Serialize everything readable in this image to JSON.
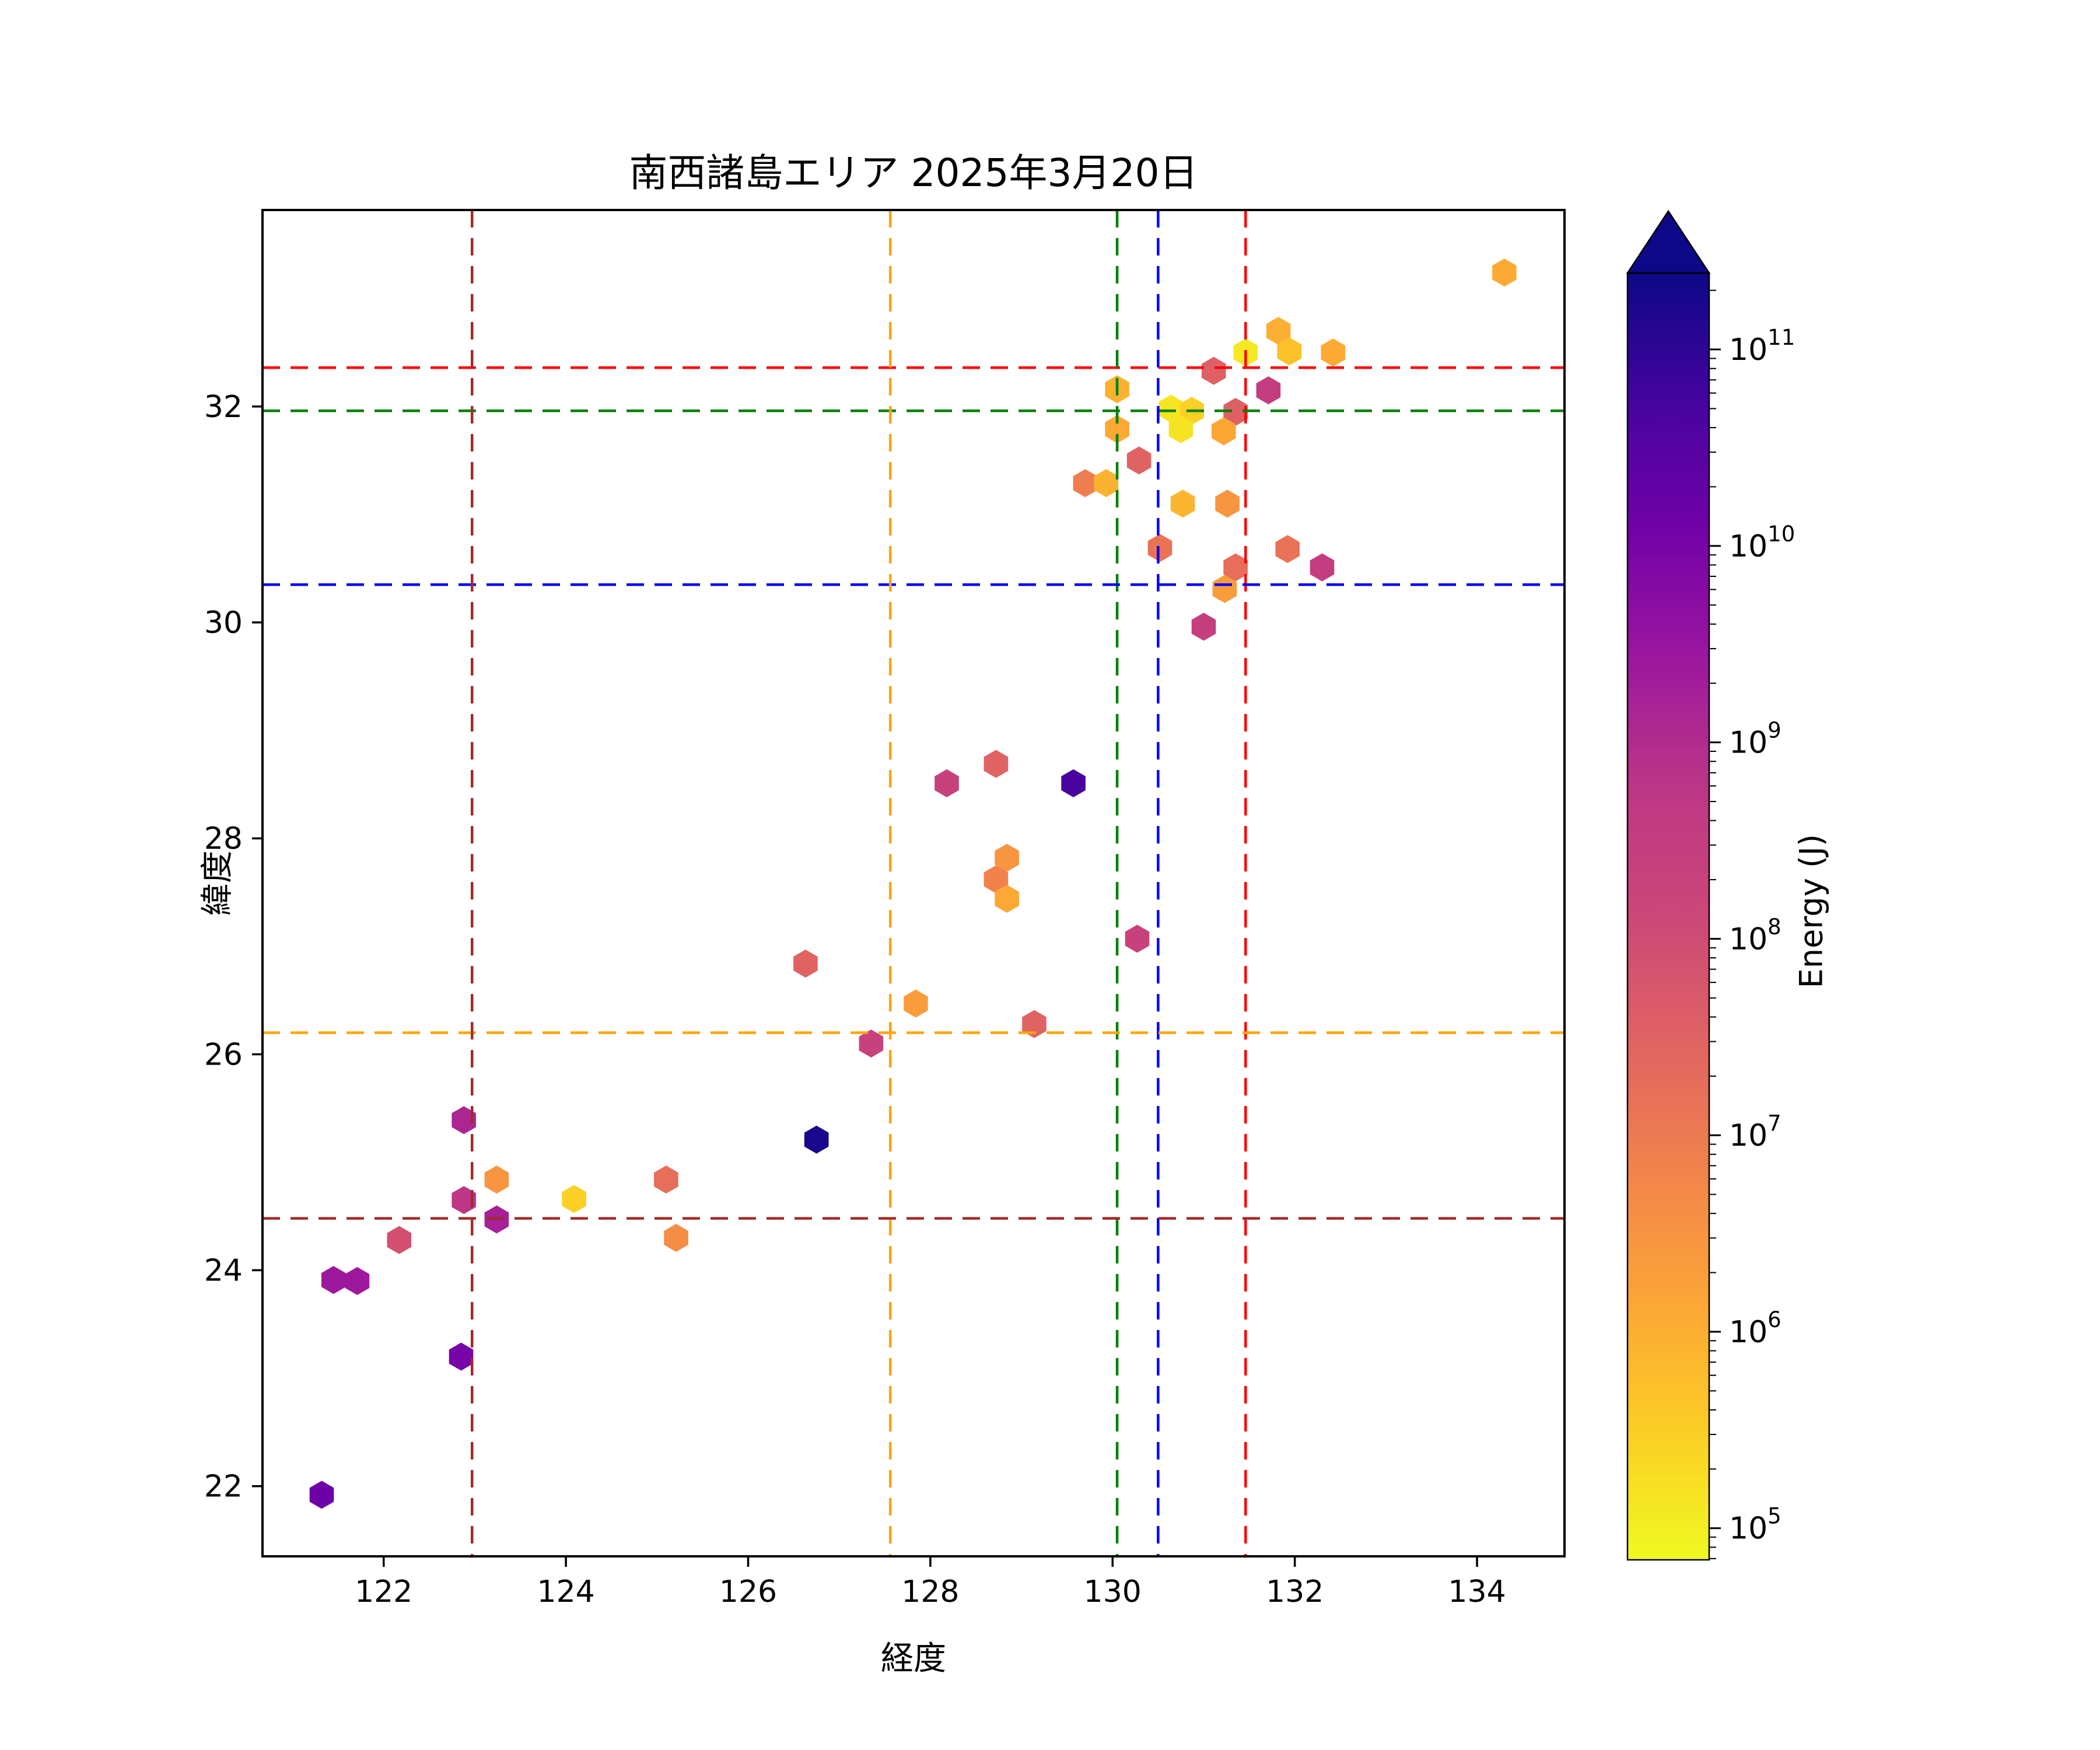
{
  "chart_data": {
    "type": "scatter",
    "title": "南西諸島エリア 2025年3月20日",
    "xlabel": "経度",
    "ylabel": "緯度",
    "xlim": [
      120.67,
      134.96
    ],
    "ylim": [
      21.35,
      33.82
    ],
    "xticks": [
      122,
      124,
      126,
      128,
      130,
      132,
      134
    ],
    "yticks": [
      22,
      24,
      26,
      28,
      30,
      32
    ],
    "grid": false,
    "marker": "hexagon",
    "legend": "none",
    "colorbar": {
      "label": "Energy (J)",
      "scale": "log",
      "colormap": "plasma_r",
      "vmin": 69000,
      "vmax": 245000000000,
      "tick_exponents": [
        5,
        6,
        7,
        8,
        9,
        10,
        11
      ],
      "extend": "max",
      "position": "right"
    },
    "crosshairs": [
      {
        "name": "red",
        "color": "#ff0000",
        "lon": 131.46,
        "lat": 32.36
      },
      {
        "name": "green",
        "color": "#008000",
        "lon": 130.05,
        "lat": 31.96
      },
      {
        "name": "blue",
        "color": "#0000ff",
        "lon": 130.5,
        "lat": 30.35
      },
      {
        "name": "orange",
        "color": "#ffa500",
        "lon": 127.56,
        "lat": 26.2
      },
      {
        "name": "darkred",
        "color": "#a52a2a",
        "lon": 122.97,
        "lat": 24.48
      }
    ],
    "points": [
      {
        "lon": 121.32,
        "lat": 21.92,
        "energy": 14000000000.0
      },
      {
        "lon": 121.45,
        "lat": 23.91,
        "energy": 2500000000.0
      },
      {
        "lon": 121.71,
        "lat": 23.9,
        "energy": 2500000000.0
      },
      {
        "lon": 122.17,
        "lat": 24.28,
        "energy": 80000000.0
      },
      {
        "lon": 122.88,
        "lat": 24.65,
        "energy": 600000000.0
      },
      {
        "lon": 123.24,
        "lat": 24.84,
        "energy": 3000000.0
      },
      {
        "lon": 124.09,
        "lat": 24.66,
        "energy": 290000.0
      },
      {
        "lon": 123.24,
        "lat": 24.47,
        "energy": 1700000000.0
      },
      {
        "lon": 122.85,
        "lat": 23.2,
        "energy": 10000000000.0
      },
      {
        "lon": 122.88,
        "lat": 25.39,
        "energy": 1300000000.0
      },
      {
        "lon": 125.1,
        "lat": 24.84,
        "energy": 18000000.0
      },
      {
        "lon": 125.21,
        "lat": 24.3,
        "energy": 4000000.0
      },
      {
        "lon": 126.63,
        "lat": 26.84,
        "energy": 30000000.0
      },
      {
        "lon": 126.75,
        "lat": 25.21,
        "energy": 180000000000.0
      },
      {
        "lon": 127.35,
        "lat": 26.1,
        "energy": 210000000.0
      },
      {
        "lon": 127.84,
        "lat": 26.47,
        "energy": 2200000.0
      },
      {
        "lon": 129.14,
        "lat": 26.28,
        "energy": 30000000.0
      },
      {
        "lon": 130.27,
        "lat": 27.07,
        "energy": 210000000.0
      },
      {
        "lon": 128.84,
        "lat": 27.82,
        "energy": 3000000.0
      },
      {
        "lon": 128.72,
        "lat": 27.62,
        "energy": 7000000.0
      },
      {
        "lon": 128.84,
        "lat": 27.44,
        "energy": 1300000.0
      },
      {
        "lon": 128.18,
        "lat": 28.51,
        "energy": 210000000.0
      },
      {
        "lon": 128.72,
        "lat": 28.69,
        "energy": 30000000.0
      },
      {
        "lon": 129.57,
        "lat": 28.51,
        "energy": 50000000000.0
      },
      {
        "lon": 129.7,
        "lat": 31.29,
        "energy": 8700000.0
      },
      {
        "lon": 129.93,
        "lat": 31.29,
        "energy": 900000.0
      },
      {
        "lon": 130.29,
        "lat": 31.5,
        "energy": 30000000.0
      },
      {
        "lon": 130.05,
        "lat": 32.16,
        "energy": 900000.0
      },
      {
        "lon": 130.05,
        "lat": 31.79,
        "energy": 1300000.0
      },
      {
        "lon": 130.64,
        "lat": 31.98,
        "energy": 140000.0
      },
      {
        "lon": 130.87,
        "lat": 31.96,
        "energy": 290000.0
      },
      {
        "lon": 130.75,
        "lat": 31.79,
        "energy": 150000.0
      },
      {
        "lon": 131.35,
        "lat": 31.95,
        "energy": 35000000.0
      },
      {
        "lon": 131.22,
        "lat": 31.77,
        "energy": 1400000.0
      },
      {
        "lon": 131.11,
        "lat": 32.33,
        "energy": 35000000.0
      },
      {
        "lon": 131.46,
        "lat": 32.5,
        "energy": 120000.0
      },
      {
        "lon": 131.71,
        "lat": 32.15,
        "energy": 320000000.0
      },
      {
        "lon": 131.82,
        "lat": 32.7,
        "energy": 1000000.0
      },
      {
        "lon": 131.94,
        "lat": 32.51,
        "energy": 490000.0
      },
      {
        "lon": 132.42,
        "lat": 32.5,
        "energy": 1200000.0
      },
      {
        "lon": 134.3,
        "lat": 33.24,
        "energy": 1200000.0
      },
      {
        "lon": 130.77,
        "lat": 31.1,
        "energy": 800000.0
      },
      {
        "lon": 131.26,
        "lat": 31.1,
        "energy": 3000000.0
      },
      {
        "lon": 130.52,
        "lat": 30.69,
        "energy": 14000000.0
      },
      {
        "lon": 131.35,
        "lat": 30.51,
        "energy": 18000000.0
      },
      {
        "lon": 131.92,
        "lat": 30.68,
        "energy": 14000000.0
      },
      {
        "lon": 132.3,
        "lat": 30.51,
        "energy": 320000000.0
      },
      {
        "lon": 131.23,
        "lat": 30.31,
        "energy": 2200000.0
      },
      {
        "lon": 131.0,
        "lat": 29.96,
        "energy": 270000000.0
      }
    ]
  }
}
